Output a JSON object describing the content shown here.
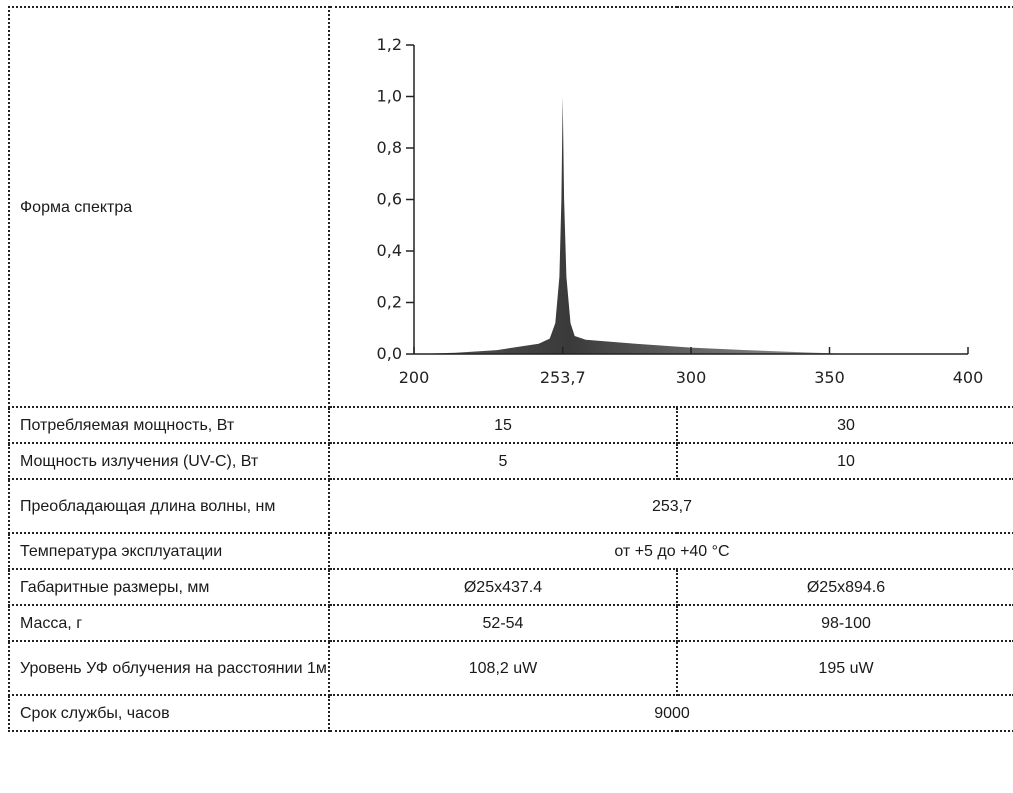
{
  "table": {
    "spectrum_label": "Форма спектра",
    "rows": [
      {
        "label": "Потребляемая мощность, Вт",
        "values": [
          "15",
          "30"
        ]
      },
      {
        "label": "Мощность излучения (UV-C), Вт",
        "values": [
          "5",
          "10"
        ]
      },
      {
        "label": "Преобладающая длина волны, нм",
        "values": [
          "253,7"
        ]
      },
      {
        "label": "Температура эксплуатации",
        "values": [
          "от +5 до +40 °С"
        ]
      },
      {
        "label": "Габаритные размеры, мм",
        "values": [
          "Ø25x437.4",
          "Ø25x894.6"
        ]
      },
      {
        "label": "Масса, г",
        "values": [
          "52-54",
          "98-100"
        ]
      },
      {
        "label": "Уровень УФ облучения на расстоянии 1м",
        "values": [
          "108,2 uW",
          "195 uW"
        ]
      },
      {
        "label": "Срок службы, часов",
        "values": [
          "9000"
        ]
      }
    ]
  },
  "chart_data": {
    "type": "area",
    "title": "",
    "xlabel": "",
    "ylabel": "",
    "x_ticks": [
      200,
      253.7,
      300,
      350,
      400
    ],
    "x_tick_labels": [
      "200",
      "253,7",
      "300",
      "350",
      "400"
    ],
    "y_ticks": [
      0.0,
      0.2,
      0.4,
      0.6,
      0.8,
      1.0,
      1.2
    ],
    "y_tick_labels": [
      "0,0",
      "0,2",
      "0,4",
      "0,6",
      "0,8",
      "1,0",
      "1,2"
    ],
    "xlim": [
      200,
      400
    ],
    "ylim": [
      0,
      1.2
    ],
    "grid": false,
    "fill_color": "#3a3a3a",
    "series": [
      {
        "x": [
          200,
          215,
          230,
          245,
          249,
          251,
          252.5,
          253.2,
          253.7,
          254.2,
          255,
          256.5,
          258,
          262,
          280,
          300,
          320,
          340,
          350,
          360
        ],
        "values": [
          0.0,
          0.005,
          0.015,
          0.04,
          0.06,
          0.12,
          0.3,
          0.6,
          1.0,
          0.6,
          0.3,
          0.12,
          0.07,
          0.055,
          0.04,
          0.025,
          0.015,
          0.007,
          0.003,
          0.0
        ]
      }
    ]
  }
}
